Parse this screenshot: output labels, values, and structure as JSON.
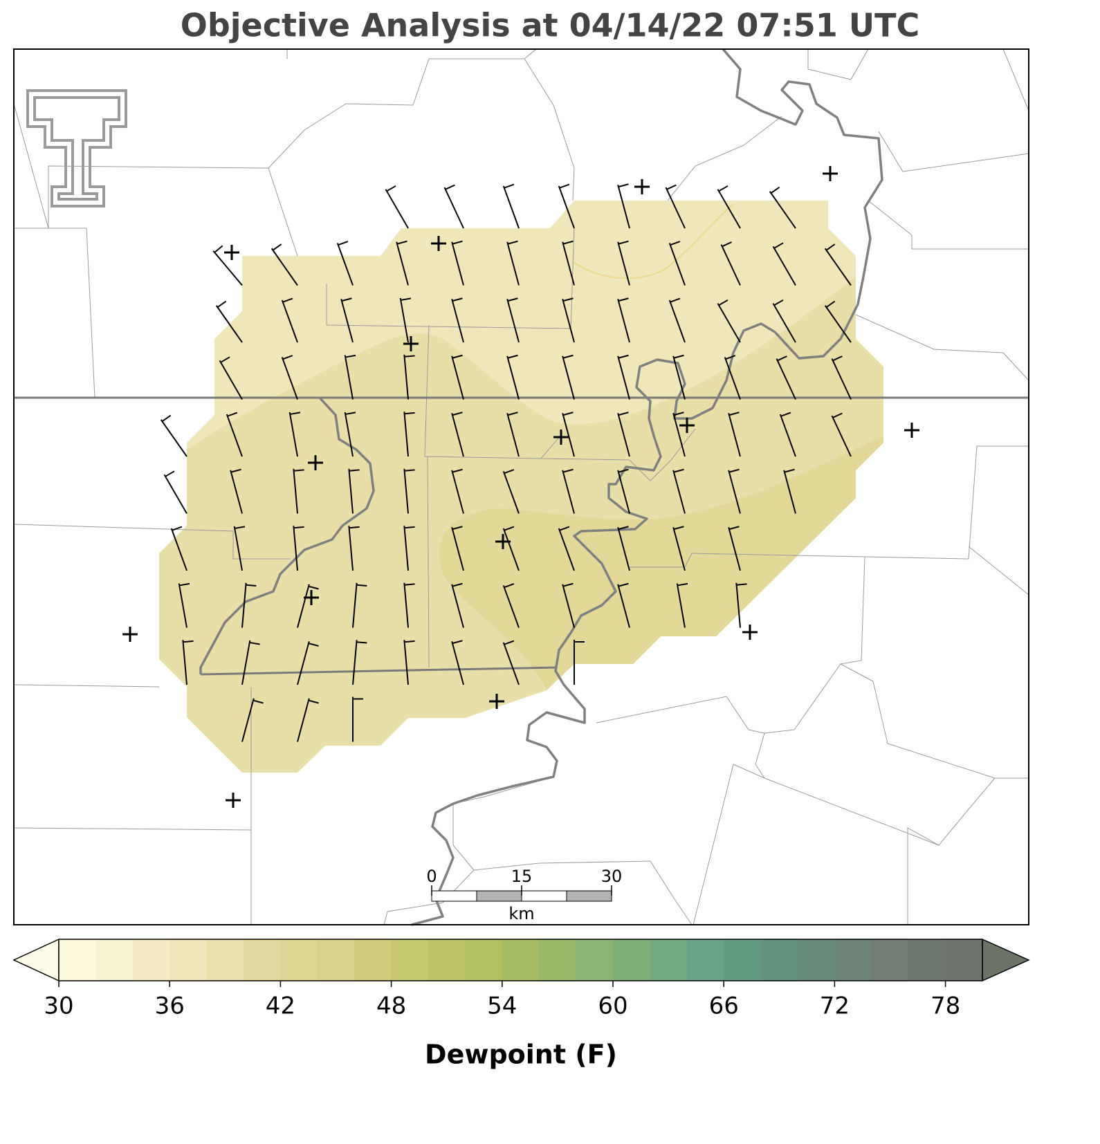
{
  "title": "Objective Analysis at 04/14/22 07:51 UTC",
  "colorbar": {
    "label": "Dewpoint (F)",
    "levels": [
      30,
      32,
      34,
      36,
      38,
      40,
      42,
      44,
      46,
      48,
      50,
      52,
      54,
      56,
      58,
      60,
      62,
      64,
      66,
      68,
      70,
      72,
      74,
      76,
      78,
      80
    ],
    "colors": [
      "#fbf8dc",
      "#f7f1d0",
      "#f3ebc4",
      "#efe5b8",
      "#ebdfac",
      "#e6d99f",
      "#e0d594",
      "#d9d18a",
      "#cfcc7c",
      "#c6c870",
      "#bcc466",
      "#b1c162",
      "#a5bc64",
      "#98b86a",
      "#8cb472",
      "#80b07a",
      "#73aa80",
      "#68a484",
      "#629c80",
      "#63927e",
      "#688a7a",
      "#6c8377",
      "#6f7d73",
      "#6f786f",
      "#6e746b"
    ],
    "under_color": "#fefce6",
    "over_color": "#6b7466",
    "ticks": [
      30,
      36,
      42,
      48,
      54,
      60,
      66,
      72,
      78
    ]
  },
  "scale_bar": {
    "xlim": [
      0,
      30
    ],
    "ticks": [
      0,
      15,
      30
    ],
    "unit": "km"
  },
  "wind": {
    "speed_kt": 5,
    "directions_deg": [
      [
        null,
        null,
        null,
        null,
        330,
        335,
        340,
        340,
        345,
        335,
        330,
        325,
        null
      ],
      [
        null,
        320,
        325,
        340,
        345,
        345,
        345,
        345,
        345,
        340,
        335,
        330,
        325
      ],
      [
        null,
        325,
        340,
        345,
        350,
        345,
        345,
        345,
        345,
        340,
        330,
        330,
        325
      ],
      [
        null,
        330,
        340,
        350,
        355,
        345,
        345,
        345,
        345,
        345,
        340,
        335,
        335
      ],
      [
        325,
        340,
        350,
        350,
        355,
        345,
        345,
        345,
        345,
        345,
        345,
        340,
        335
      ],
      [
        330,
        345,
        355,
        355,
        355,
        345,
        340,
        345,
        345,
        345,
        345,
        345,
        null
      ],
      [
        340,
        350,
        355,
        355,
        355,
        345,
        340,
        340,
        345,
        345,
        345,
        null,
        null
      ],
      [
        350,
        5,
        15,
        5,
        355,
        345,
        340,
        345,
        345,
        350,
        355,
        null,
        null
      ],
      [
        355,
        10,
        15,
        5,
        355,
        345,
        340,
        360,
        null,
        null,
        null,
        null,
        null
      ],
      [
        null,
        15,
        15,
        360,
        null,
        null,
        null,
        null,
        null,
        null,
        null,
        null,
        null
      ]
    ]
  }
}
